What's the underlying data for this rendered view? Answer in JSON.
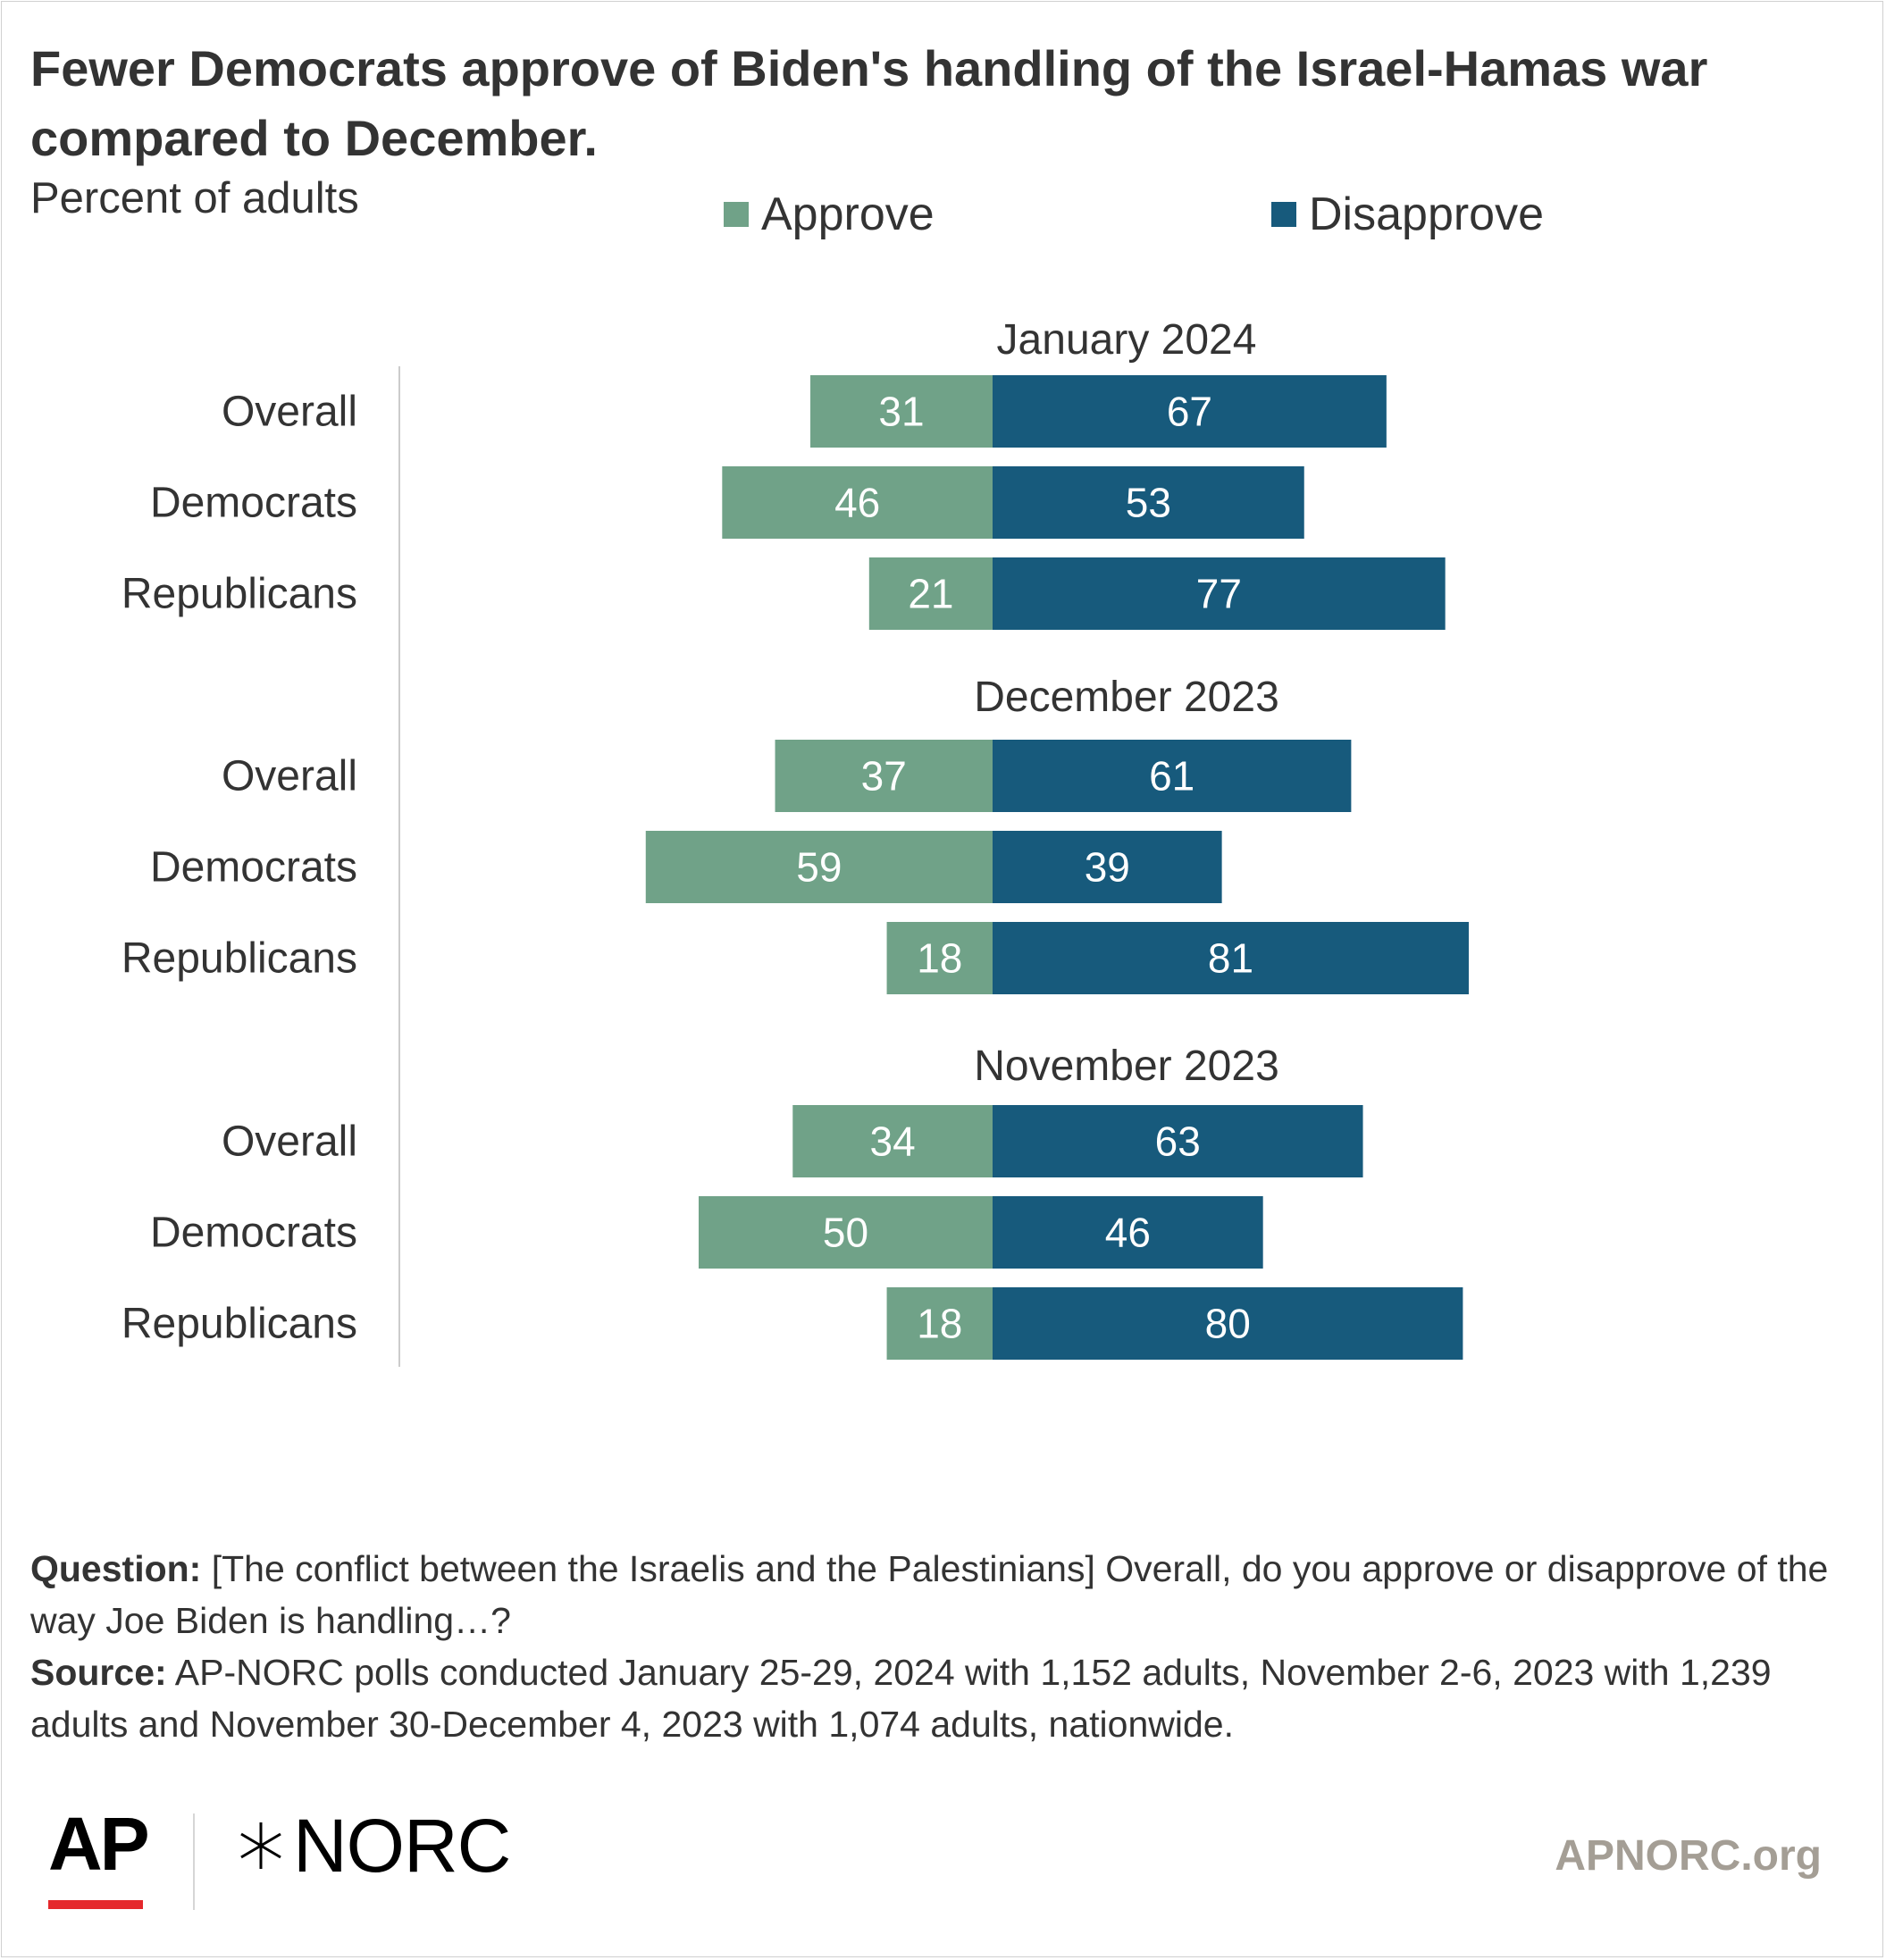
{
  "title": "Fewer Democrats approve of Biden's handling of the Israel-Hamas war compared to December.",
  "subtitle": "Percent of adults",
  "legend": {
    "approve": {
      "label": "Approve",
      "color": "#70a288"
    },
    "disapprove": {
      "label": "Disapprove",
      "color": "#175a7c"
    }
  },
  "chart_data": {
    "type": "bar",
    "orientation": "horizontal diverging",
    "title": "Fewer Democrats approve of Biden's handling of the Israel-Hamas war compared to December.",
    "subtitle": "Percent of adults",
    "legend_placement": "top",
    "grid": false,
    "series_names": [
      "Approve",
      "Disapprove"
    ],
    "colors": {
      "Approve": "#70a288",
      "Disapprove": "#175a7c"
    },
    "groups": [
      {
        "label": "January 2024",
        "rows": [
          {
            "label": "Overall",
            "approve": 31,
            "disapprove": 67
          },
          {
            "label": "Democrats",
            "approve": 46,
            "disapprove": 53
          },
          {
            "label": "Republicans",
            "approve": 21,
            "disapprove": 77
          }
        ]
      },
      {
        "label": "December 2023",
        "rows": [
          {
            "label": "Overall",
            "approve": 37,
            "disapprove": 61
          },
          {
            "label": "Democrats",
            "approve": 59,
            "disapprove": 39
          },
          {
            "label": "Republicans",
            "approve": 18,
            "disapprove": 81
          }
        ]
      },
      {
        "label": "November 2023",
        "rows": [
          {
            "label": "Overall",
            "approve": 34,
            "disapprove": 63
          },
          {
            "label": "Democrats",
            "approve": 50,
            "disapprove": 46
          },
          {
            "label": "Republicans",
            "approve": 18,
            "disapprove": 80
          }
        ]
      }
    ]
  },
  "footnote": {
    "question_label": "Question:",
    "question_text": " [The conflict between the Israelis and the Palestinians] Overall, do you approve or disapprove of the way Joe Biden is handling…?",
    "source_label": "Source:",
    "source_text": " AP-NORC polls conducted January 25-29, 2024 with 1,152 adults, November 2-6, 2023 with 1,239 adults and November 30-December 4, 2023 with 1,074 adults, nationwide."
  },
  "branding": {
    "ap_logo": "AP",
    "norc_logo": "NORC",
    "site": "APNORC.org"
  }
}
